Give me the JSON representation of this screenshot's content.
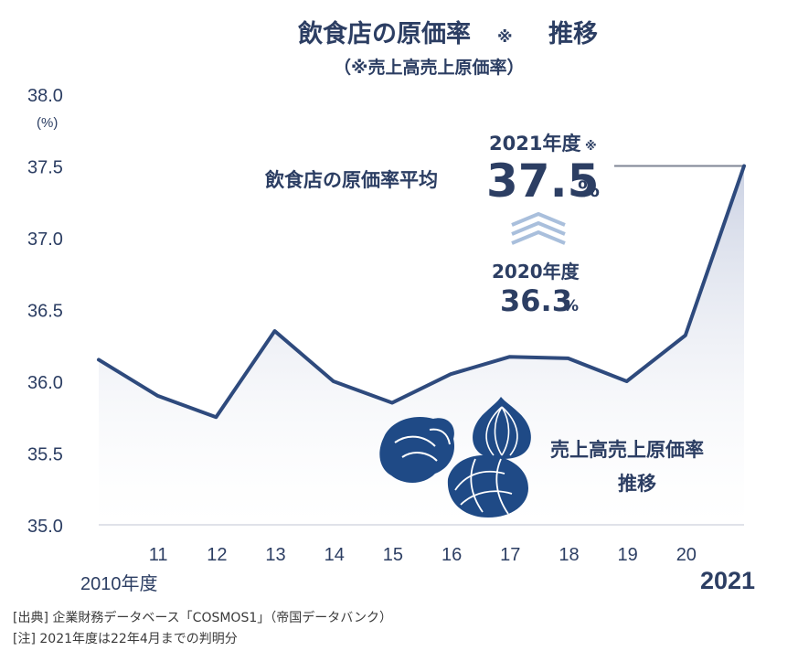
{
  "chart_data": {
    "type": "area",
    "title": "飲食店の原価率",
    "title_mark": "※",
    "title_suffix": "推移",
    "subtitle": "（※売上高売上原価率）",
    "ylabel": "(%)",
    "x": [
      "2010年度",
      "11",
      "12",
      "13",
      "14",
      "15",
      "16",
      "17",
      "18",
      "19",
      "20",
      "2021"
    ],
    "series": [
      {
        "name": "売上高売上原価率推移",
        "values": [
          36.15,
          35.9,
          35.75,
          36.35,
          36.0,
          35.85,
          36.05,
          36.17,
          36.16,
          36.0,
          36.32,
          37.5
        ]
      }
    ],
    "ylim": [
      35.0,
      38.0
    ],
    "yticks": [
      "35.0",
      "35.5",
      "36.0",
      "36.5",
      "37.0",
      "37.5",
      "38.0"
    ],
    "series_label_line1": "売上高売上原価率",
    "series_label_line2": "推移",
    "line_color": "#2e4a7d",
    "area_top_color": "#c9d0e2",
    "annotation": {
      "label": "飲食店の原価率平均",
      "current_label": "2021年度",
      "current_mark": "※",
      "current_value": "37.5",
      "current_unit": "%",
      "prev_label": "2020年度",
      "prev_value": "36.3",
      "prev_unit": "%"
    }
  },
  "footnotes": {
    "source": "[出典] 企業財務データベース「COSMOS1」（帝国データバンク）",
    "note": "[注] 2021年度は22年4月までの判明分"
  }
}
